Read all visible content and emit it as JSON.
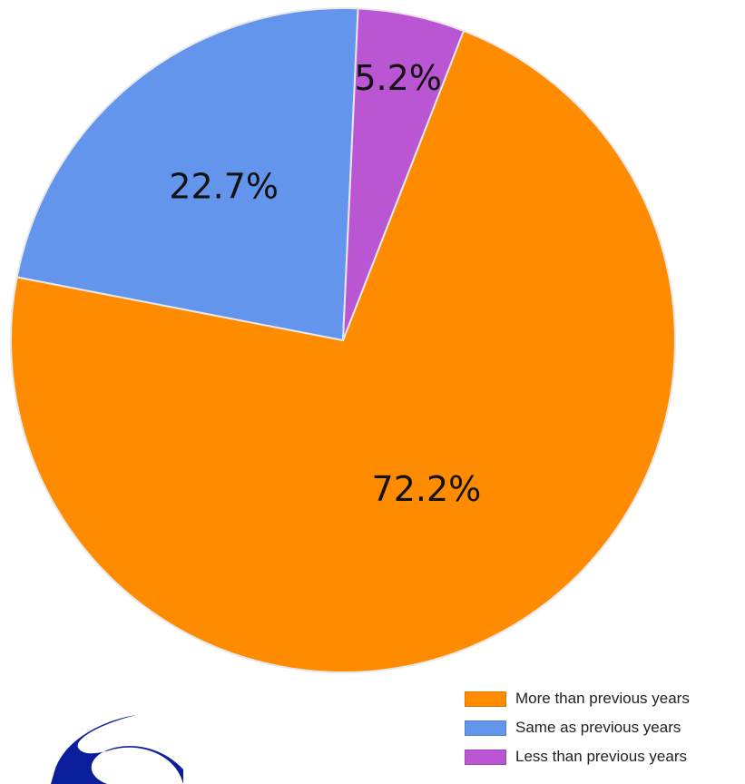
{
  "chart_data": {
    "type": "pie",
    "categories": [
      "More than previous years",
      "Same as previous years",
      "Less than previous years"
    ],
    "values": [
      72.2,
      22.7,
      5.2
    ],
    "data_labels": [
      "72.2%",
      "22.7%",
      "5.2%"
    ],
    "colors": [
      "#FF8C00",
      "#6495ED",
      "#BA55D3"
    ],
    "title": "",
    "legend": "bottom-right"
  },
  "logo": {
    "icon": "blue-swirl-logo-icon",
    "color": "#0A1E9C"
  }
}
